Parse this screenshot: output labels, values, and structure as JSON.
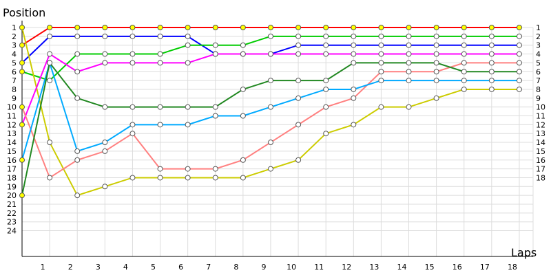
{
  "chart_data": {
    "type": "line",
    "title": "",
    "xlabel": "Laps",
    "ylabel": "Position",
    "x_ticks": [
      1,
      2,
      3,
      4,
      5,
      6,
      7,
      8,
      9,
      10,
      11,
      12,
      13,
      14,
      15,
      16,
      17,
      18
    ],
    "y_ticks": [
      1,
      2,
      3,
      4,
      5,
      6,
      7,
      8,
      9,
      10,
      11,
      12,
      13,
      14,
      15,
      16,
      17,
      18,
      19,
      20,
      21,
      22,
      23,
      24
    ],
    "y_right_ticks": [
      1,
      2,
      3,
      4,
      5,
      6,
      7,
      8,
      9,
      10,
      11,
      12,
      13,
      14,
      15,
      16,
      17,
      18
    ],
    "xlim": [
      0,
      18.5
    ],
    "ylim": [
      1,
      24
    ],
    "y_inverted": true,
    "grid": true,
    "legend": "none",
    "series": [
      {
        "color": "#ff0000",
        "x": [
          0,
          1,
          2,
          3,
          4,
          5,
          6,
          7,
          8,
          9,
          10,
          11,
          12,
          13,
          14,
          15,
          16,
          17,
          18
        ],
        "y": [
          3,
          1,
          1,
          1,
          1,
          1,
          1,
          1,
          1,
          1,
          1,
          1,
          1,
          1,
          1,
          1,
          1,
          1,
          1
        ]
      },
      {
        "color": "#0000ff",
        "x": [
          0,
          1,
          2,
          3,
          4,
          5,
          6,
          7,
          8,
          9,
          10,
          11,
          12,
          13,
          14,
          15,
          16,
          17,
          18
        ],
        "y": [
          5,
          2,
          2,
          2,
          2,
          2,
          2,
          4,
          4,
          4,
          3,
          3,
          3,
          3,
          3,
          3,
          3,
          3,
          3
        ]
      },
      {
        "color": "#00cc00",
        "x": [
          0,
          1,
          2,
          3,
          4,
          5,
          6,
          7,
          8,
          9,
          10,
          11,
          12,
          13,
          14,
          15,
          16,
          17,
          18
        ],
        "y": [
          6,
          7,
          4,
          4,
          4,
          4,
          3,
          3,
          3,
          2,
          2,
          2,
          2,
          2,
          2,
          2,
          2,
          2,
          2
        ]
      },
      {
        "color": "#cccc00",
        "x": [
          0,
          1,
          2,
          3,
          4,
          5,
          6,
          7,
          8,
          9,
          10,
          11,
          12,
          13,
          14,
          15,
          16,
          17,
          18
        ],
        "y": [
          1,
          14,
          20,
          19,
          18,
          18,
          18,
          18,
          18,
          17,
          16,
          13,
          12,
          10,
          10,
          9,
          8,
          8,
          8
        ]
      },
      {
        "color": "#ff00ff",
        "x": [
          0,
          1,
          2,
          3,
          4,
          5,
          6,
          7,
          8,
          9,
          10,
          11,
          12,
          13,
          14,
          15,
          16,
          17,
          18
        ],
        "y": [
          12,
          4,
          6,
          5,
          5,
          5,
          5,
          4,
          4,
          4,
          4,
          4,
          4,
          4,
          4,
          4,
          4,
          4,
          4
        ]
      },
      {
        "color": "#ff8080",
        "x": [
          0,
          1,
          2,
          3,
          4,
          5,
          6,
          7,
          8,
          9,
          10,
          11,
          12,
          13,
          14,
          15,
          16,
          17,
          18
        ],
        "y": [
          10,
          18,
          16,
          15,
          13,
          17,
          17,
          17,
          16,
          14,
          12,
          10,
          9,
          6,
          6,
          6,
          5,
          5,
          5
        ]
      },
      {
        "color": "#00aaff",
        "x": [
          0,
          1,
          2,
          3,
          4,
          5,
          6,
          7,
          8,
          9,
          10,
          11,
          12,
          13,
          14,
          15,
          16,
          17,
          18
        ],
        "y": [
          16,
          5,
          15,
          14,
          12,
          12,
          12,
          11,
          11,
          10,
          9,
          8,
          8,
          7,
          7,
          7,
          7,
          7,
          7
        ]
      },
      {
        "color": "#228822",
        "x": [
          0,
          1,
          2,
          3,
          4,
          5,
          6,
          7,
          8,
          9,
          10,
          11,
          12,
          13,
          14,
          15,
          16,
          17,
          18
        ],
        "y": [
          20,
          5,
          9,
          10,
          10,
          10,
          10,
          10,
          8,
          7,
          7,
          7,
          5,
          5,
          5,
          5,
          6,
          6,
          6
        ]
      }
    ]
  }
}
